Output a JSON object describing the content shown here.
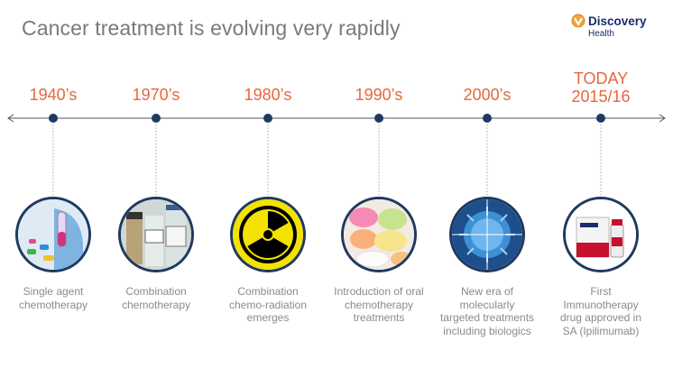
{
  "title": "Cancer treatment is evolving very rapidly",
  "logo": {
    "name": "Discovery",
    "sub": "Health"
  },
  "colors": {
    "accent": "#e8663a",
    "node": "#1f3a60",
    "line": "#555555",
    "caption": "#8a8a8a"
  },
  "events": [
    {
      "year": "1940’s",
      "year2": "",
      "caption": [
        "Single agent",
        "chemotherapy"
      ],
      "icon": "test-tubes-icon"
    },
    {
      "year": "1970’s",
      "year2": "",
      "caption": [
        "Combination",
        "chemotherapy"
      ],
      "icon": "vials-icon"
    },
    {
      "year": "1980’s",
      "year2": "",
      "caption": [
        "Combination",
        "chemo-radiation",
        "emerges"
      ],
      "icon": "radiation-icon"
    },
    {
      "year": "1990’s",
      "year2": "",
      "caption": [
        "Introduction of oral",
        "chemotherapy",
        "treatments"
      ],
      "icon": "pills-icon"
    },
    {
      "year": "2000’s",
      "year2": "",
      "caption": [
        "New era of",
        "molecularly",
        "targeted treatments",
        "including biologics"
      ],
      "icon": "cell-target-icon"
    },
    {
      "year": "TODAY",
      "year2": "2015/16",
      "caption": [
        "First",
        "Immunotherapy",
        "drug approved in",
        "SA (Ipilimumab)"
      ],
      "icon": "drug-box-icon"
    }
  ]
}
